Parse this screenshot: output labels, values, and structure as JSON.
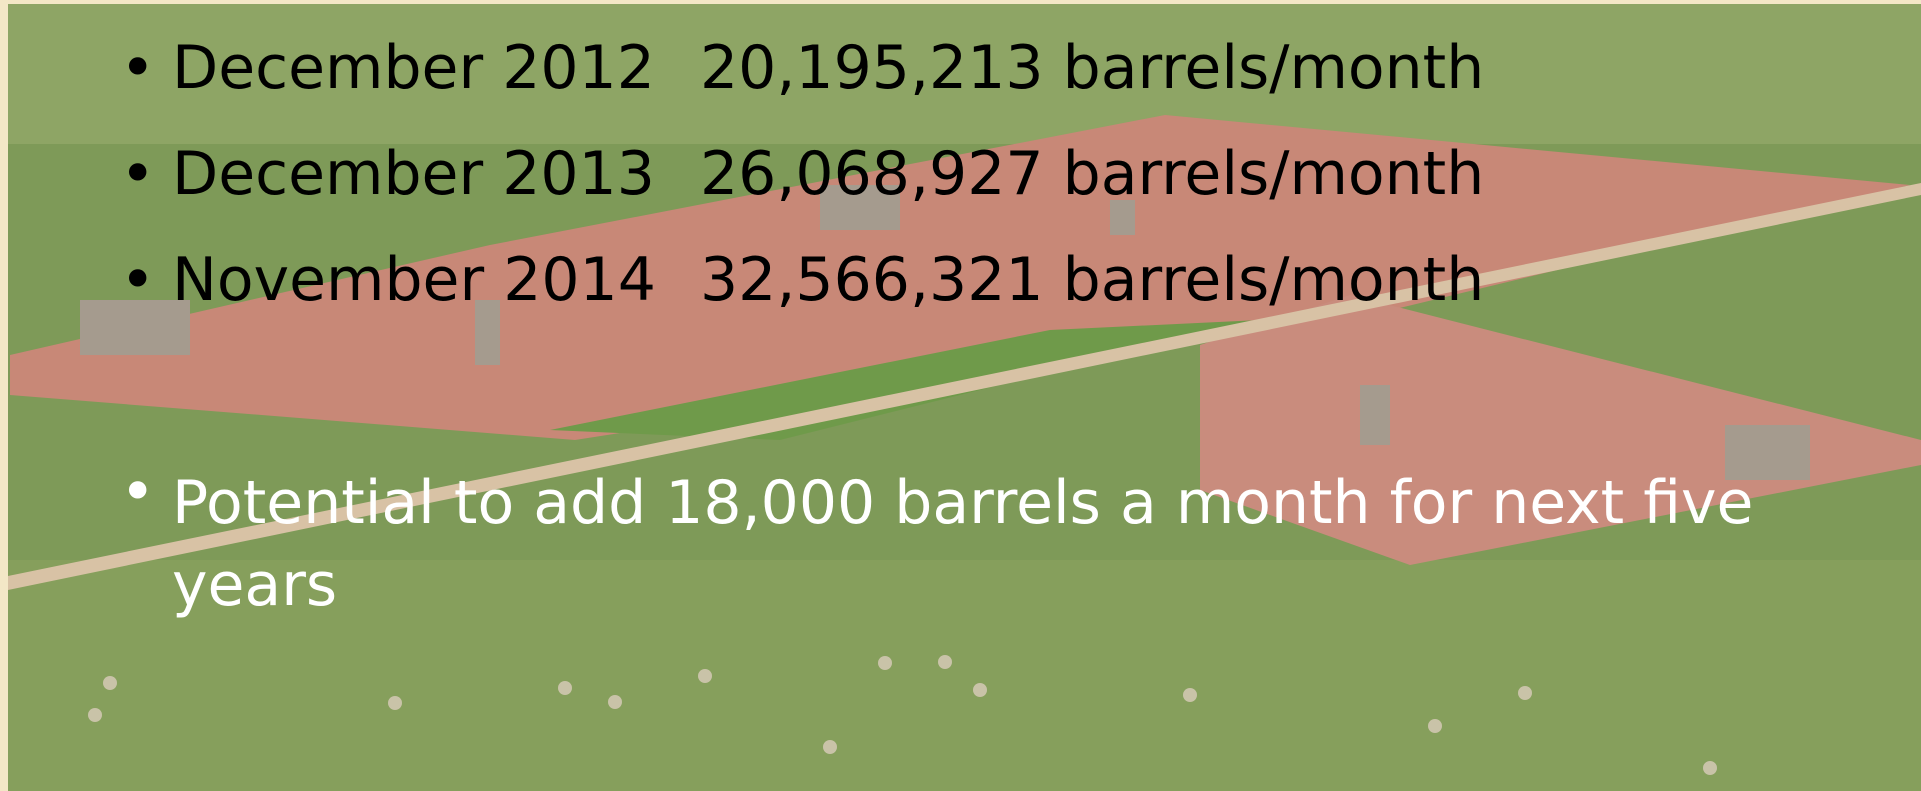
{
  "bullets": [
    {
      "label": "December 2012",
      "amount": "20,195,213 barrels/month"
    },
    {
      "label": "December 2013",
      "amount": "26,068,927 barrels/month"
    },
    {
      "label": "November 2014",
      "amount": "32,566,321 barrels/month"
    }
  ],
  "note": "Potential to add 18,000 barrels a month for next five years"
}
